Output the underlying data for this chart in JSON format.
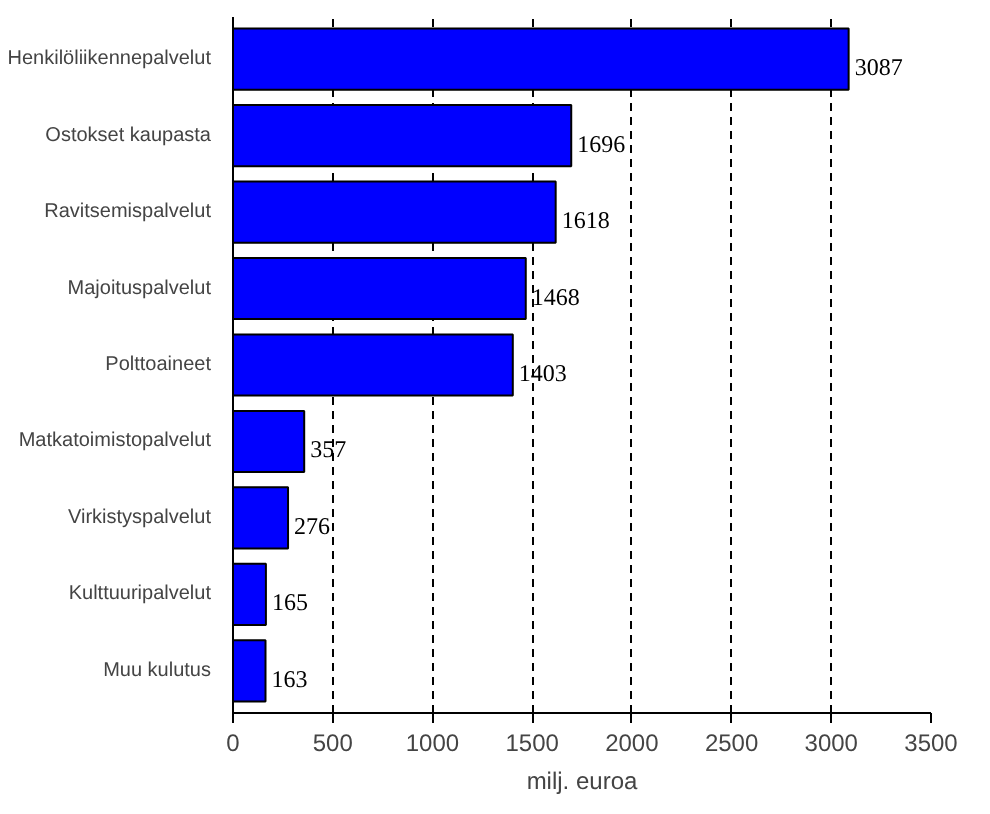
{
  "chart_data": {
    "type": "bar",
    "orientation": "horizontal",
    "xlabel": "milj. euroa",
    "categories": [
      "Henkilöliikennepalvelut",
      "Ostokset kaupasta",
      "Ravitsemispalvelut",
      "Majoituspalvelut",
      "Polttoaineet",
      "Matkatoimistopalvelut",
      "Virkistyspalvelut",
      "Kulttuuripalvelut",
      "Muu kulutus"
    ],
    "values": [
      3087,
      1696,
      1618,
      1468,
      1403,
      357,
      276,
      165,
      163
    ],
    "color": "#0000ff",
    "xlim": [
      0,
      3500
    ],
    "xticks": [
      0,
      500,
      1000,
      1500,
      2000,
      2500,
      3000,
      3500
    ],
    "grid": "x",
    "data_labels": true
  }
}
